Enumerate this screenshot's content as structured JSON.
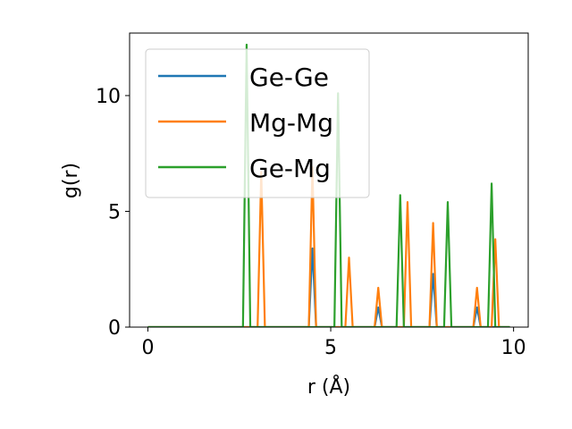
{
  "chart_data": {
    "type": "line",
    "xlabel": "r (Å)",
    "ylabel": "g(r)",
    "xlim": [
      -0.5,
      10.4
    ],
    "ylim": [
      0,
      12.7
    ],
    "x_ticks": [
      0,
      5,
      10
    ],
    "x_tick_labels": [
      "0",
      "5",
      "10"
    ],
    "y_ticks": [
      0,
      5,
      10
    ],
    "y_tick_labels": [
      "0",
      "5",
      "10"
    ],
    "grid": false,
    "legend_position": "upper-left",
    "series": [
      {
        "name": "Ge-Ge",
        "color": "#1f77b4",
        "x": [
          0,
          4.4,
          4.5,
          4.6,
          6.2,
          6.3,
          6.4,
          7.7,
          7.8,
          7.9,
          8.9,
          9.0,
          9.1,
          9.9
        ],
        "y": [
          0,
          0,
          3.4,
          0,
          0,
          0.85,
          0,
          0,
          2.3,
          0,
          0,
          0.85,
          0,
          0
        ]
      },
      {
        "name": "Mg-Mg",
        "color": "#ff7f0e",
        "x": [
          0,
          3.0,
          3.1,
          3.2,
          4.4,
          4.5,
          4.6,
          5.4,
          5.5,
          5.6,
          6.2,
          6.3,
          6.4,
          7.0,
          7.1,
          7.2,
          7.7,
          7.8,
          7.9,
          8.9,
          9.0,
          9.1,
          9.4,
          9.5,
          9.6,
          9.9
        ],
        "y": [
          0,
          0,
          6.7,
          0,
          0,
          6.9,
          0,
          0,
          3.0,
          0,
          0,
          1.7,
          0,
          0,
          5.4,
          0,
          0,
          4.5,
          0,
          0,
          1.7,
          0,
          0,
          3.8,
          0,
          0
        ]
      },
      {
        "name": "Ge-Mg",
        "color": "#2ca02c",
        "x": [
          0,
          2.6,
          2.7,
          2.8,
          5.1,
          5.2,
          5.3,
          6.8,
          6.9,
          7.0,
          8.1,
          8.2,
          8.3,
          9.3,
          9.4,
          9.5,
          9.9
        ],
        "y": [
          0,
          0,
          12.2,
          0,
          0,
          10.1,
          0,
          0,
          5.7,
          0,
          0,
          5.4,
          0,
          0,
          6.2,
          0,
          0
        ]
      }
    ]
  }
}
